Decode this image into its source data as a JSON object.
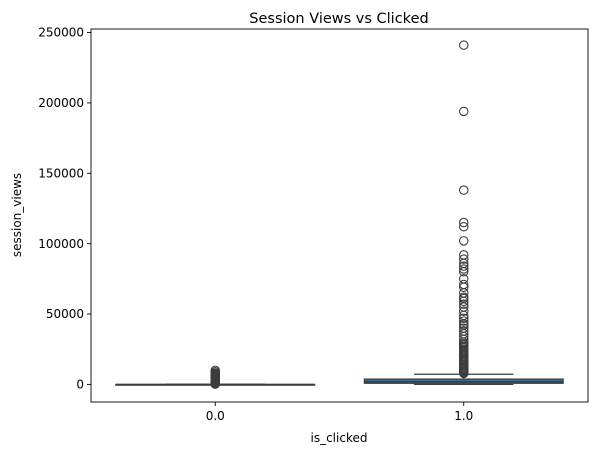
{
  "chart_data": {
    "type": "box",
    "title": "Session Views vs Clicked",
    "xlabel": "is_clicked",
    "ylabel": "session_views",
    "categories": [
      "0.0",
      "1.0"
    ],
    "ylim": [
      -12500,
      252500
    ],
    "yticks": [
      0,
      50000,
      100000,
      150000,
      200000,
      250000
    ],
    "grid": false,
    "box_color": "#3a6e94",
    "median_color": "#3d3d3d",
    "boxes": [
      {
        "category": "0.0",
        "whisker_low": 0,
        "q1": 0,
        "median": 0,
        "q3": 0,
        "whisker_high": 0,
        "outliers": [
          200,
          500,
          800,
          1200,
          1600,
          2000,
          2400,
          2800,
          3200,
          3600,
          4000,
          4500,
          5000,
          5500,
          6000,
          6500,
          7000,
          7500,
          8000,
          9000,
          10000
        ]
      },
      {
        "category": "1.0",
        "whisker_low": 0,
        "q1": 800,
        "median": 1800,
        "q3": 3800,
        "whisker_high": 7200,
        "outliers": [
          7800,
          8500,
          9200,
          10000,
          10800,
          11500,
          12200,
          13000,
          14000,
          15000,
          16000,
          17000,
          18000,
          19000,
          20000,
          21000,
          22000,
          23000,
          24000,
          25000,
          26000,
          27000,
          28000,
          29000,
          30000,
          32000,
          34000,
          36000,
          38000,
          40000,
          42000,
          43000,
          45000,
          47000,
          49000,
          52000,
          55000,
          57000,
          59000,
          61000,
          62000,
          65000,
          69000,
          71000,
          75000,
          80000,
          82000,
          84000,
          86000,
          89000,
          92000,
          102000,
          112000,
          115000,
          138000,
          194000,
          241000
        ]
      }
    ]
  }
}
